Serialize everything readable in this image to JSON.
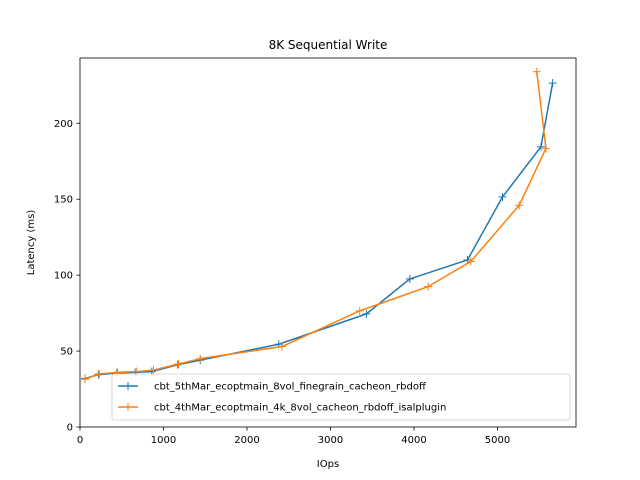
{
  "chart_data": {
    "type": "line",
    "title": "8K  Sequential Write",
    "xlabel": "IOps",
    "ylabel": "Latency (ms)",
    "xlim": [
      0,
      5940
    ],
    "ylim": [
      0,
      243
    ],
    "xticks": [
      0,
      1000,
      2000,
      3000,
      4000,
      5000
    ],
    "yticks": [
      0,
      50,
      100,
      150,
      200
    ],
    "grid": false,
    "legend_position": "lower-right",
    "marker": "plus",
    "series": [
      {
        "name": "cbt_5thMar_ecoptmain_8vol_finegrain_cacheon_rbdoff",
        "color": "#1f77b4",
        "points": [
          [
            60,
            32
          ],
          [
            220,
            34.5
          ],
          [
            440,
            35.5
          ],
          [
            660,
            36
          ],
          [
            860,
            36.5
          ],
          [
            1170,
            41
          ],
          [
            1440,
            44
          ],
          [
            2380,
            54.5
          ],
          [
            3430,
            74.5
          ],
          [
            3950,
            97.5
          ],
          [
            4640,
            110
          ],
          [
            5060,
            151.5
          ],
          [
            5520,
            184.5
          ],
          [
            5660,
            226.5
          ]
        ]
      },
      {
        "name": "cbt_4thMar_ecoptmain_4k_8vol_cacheon_rbdoff_isalplugin",
        "color": "#ff7f0e",
        "points": [
          [
            5470,
            234
          ],
          [
            5580,
            183.5
          ],
          [
            5260,
            146
          ],
          [
            4680,
            109
          ],
          [
            4170,
            92.5
          ],
          [
            3350,
            76.5
          ],
          [
            2420,
            53
          ],
          [
            1440,
            45
          ],
          [
            1180,
            41.5
          ],
          [
            880,
            37.5
          ],
          [
            680,
            36.5
          ],
          [
            450,
            36
          ],
          [
            230,
            35
          ],
          [
            60,
            31.5
          ]
        ]
      }
    ]
  }
}
